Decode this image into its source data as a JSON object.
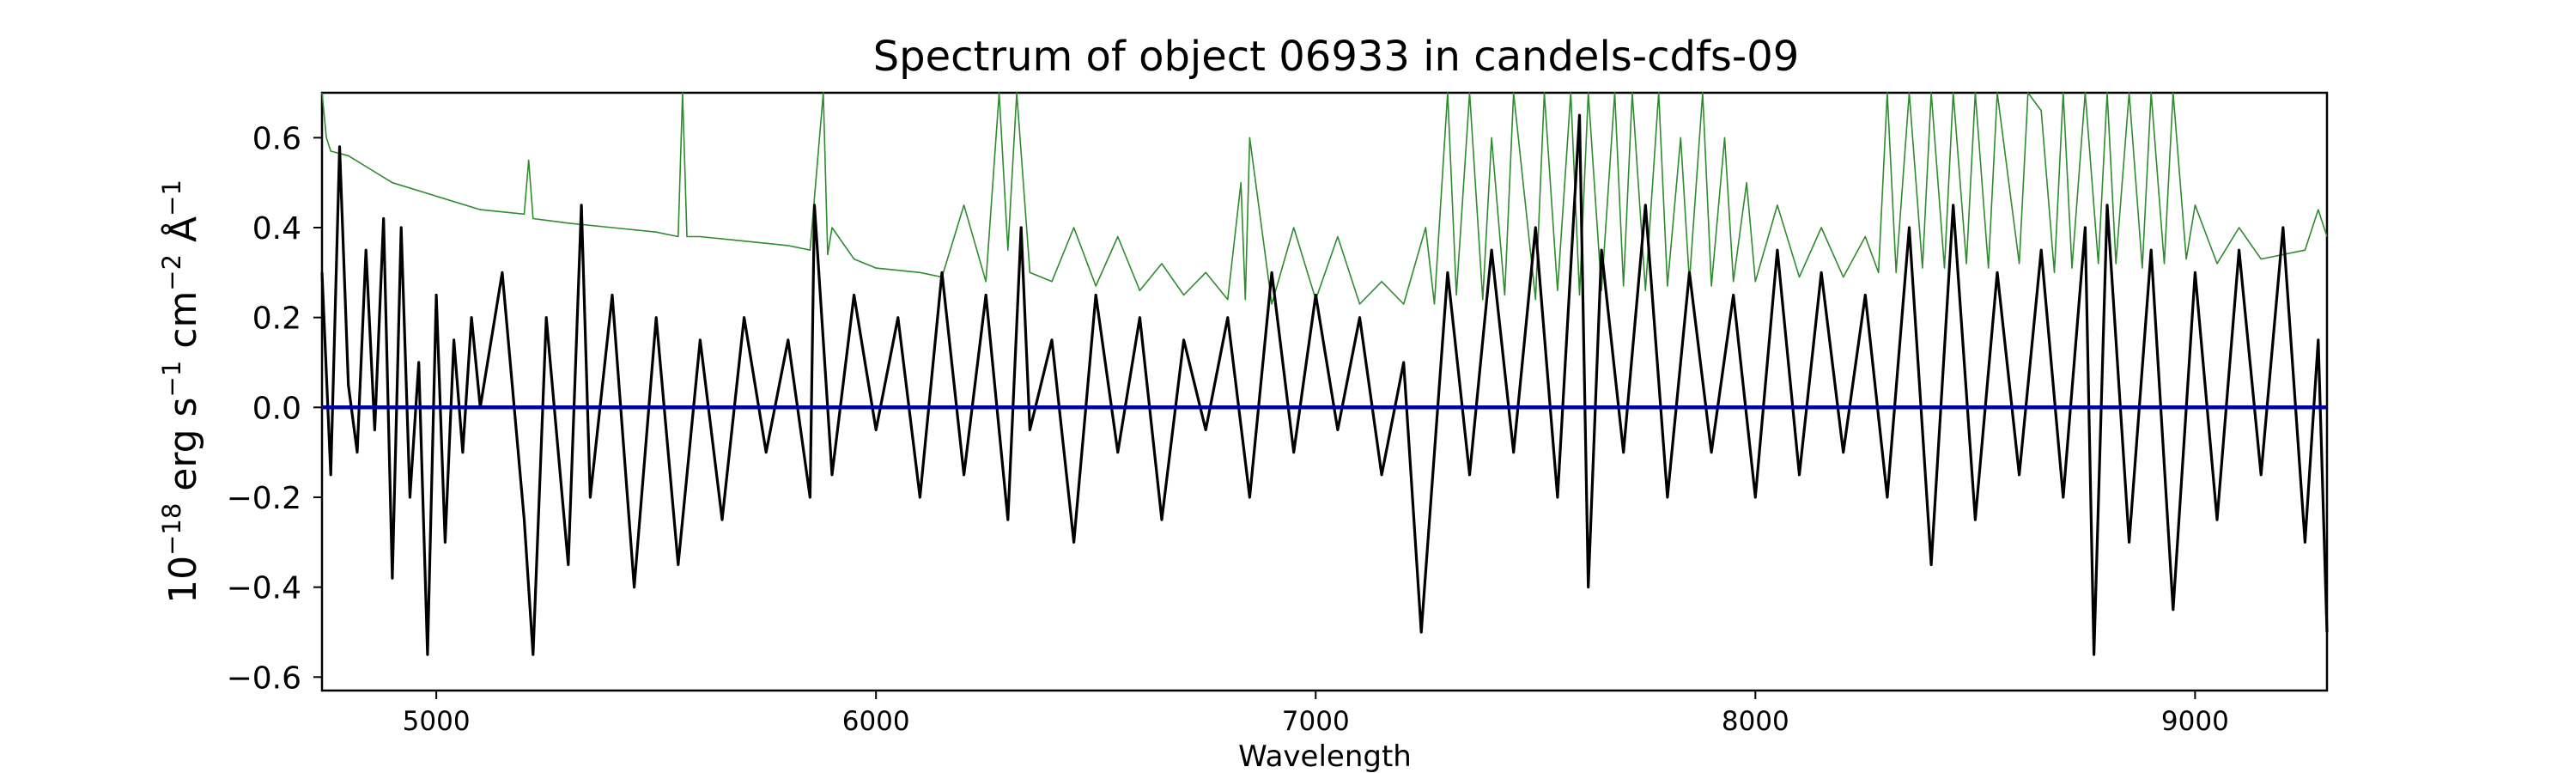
{
  "chart_data": {
    "type": "line",
    "title": "Spectrum of object 06933 in candels-cdfs-09",
    "xlabel": "Wavelength",
    "ylabel": {
      "base": "10",
      "exp_base": "−18",
      "erg": " erg s",
      "exp_s": "−1",
      "cm": " cm",
      "exp_cm": "−2",
      "ang": " Å",
      "exp_ang": "−1"
    },
    "xlim": [
      4740,
      9300
    ],
    "ylim": [
      -0.63,
      0.7
    ],
    "xticks": [
      5000,
      6000,
      7000,
      8000,
      9000
    ],
    "xtick_labels": [
      "5000",
      "6000",
      "7000",
      "8000",
      "9000"
    ],
    "yticks": [
      -0.6,
      -0.4,
      -0.2,
      0.0,
      0.2,
      0.4,
      0.6
    ],
    "ytick_labels": [
      "−0.6",
      "−0.4",
      "−0.2",
      "0.0",
      "0.2",
      "0.4",
      "0.6"
    ],
    "grid": false,
    "colors": {
      "flux": "#000000",
      "uncertainty": "#2e8b2e",
      "zero_line": "#0000aa"
    },
    "series": [
      {
        "role": "flux",
        "x": [
          4740,
          4760,
          4780,
          4800,
          4820,
          4840,
          4860,
          4880,
          4900,
          4920,
          4940,
          4960,
          4980,
          5000,
          5020,
          5040,
          5060,
          5080,
          5100,
          5150,
          5200,
          5220,
          5250,
          5300,
          5330,
          5350,
          5400,
          5450,
          5500,
          5550,
          5600,
          5650,
          5700,
          5750,
          5800,
          5850,
          5860,
          5900,
          5950,
          6000,
          6050,
          6100,
          6150,
          6200,
          6250,
          6300,
          6330,
          6350,
          6400,
          6450,
          6500,
          6550,
          6600,
          6650,
          6700,
          6750,
          6800,
          6850,
          6900,
          6950,
          7000,
          7050,
          7100,
          7150,
          7200,
          7240,
          7300,
          7350,
          7400,
          7450,
          7500,
          7550,
          7600,
          7620,
          7650,
          7700,
          7750,
          7800,
          7850,
          7900,
          7950,
          8000,
          8050,
          8100,
          8150,
          8200,
          8250,
          8300,
          8350,
          8400,
          8450,
          8500,
          8550,
          8600,
          8650,
          8700,
          8750,
          8770,
          8800,
          8850,
          8900,
          8950,
          9000,
          9050,
          9100,
          9150,
          9200,
          9250,
          9280,
          9300
        ],
        "y": [
          0.3,
          -0.15,
          0.58,
          0.05,
          -0.1,
          0.35,
          -0.05,
          0.42,
          -0.38,
          0.4,
          -0.2,
          0.1,
          -0.55,
          0.25,
          -0.3,
          0.15,
          -0.1,
          0.2,
          0.0,
          0.3,
          -0.25,
          -0.55,
          0.2,
          -0.35,
          0.45,
          -0.2,
          0.25,
          -0.4,
          0.2,
          -0.35,
          0.15,
          -0.25,
          0.2,
          -0.1,
          0.15,
          -0.2,
          0.45,
          -0.15,
          0.25,
          -0.05,
          0.2,
          -0.2,
          0.3,
          -0.15,
          0.25,
          -0.25,
          0.4,
          -0.05,
          0.15,
          -0.3,
          0.25,
          -0.1,
          0.2,
          -0.25,
          0.15,
          -0.05,
          0.2,
          -0.2,
          0.3,
          -0.1,
          0.25,
          -0.05,
          0.2,
          -0.15,
          0.1,
          -0.5,
          0.3,
          -0.15,
          0.35,
          -0.1,
          0.4,
          -0.2,
          0.65,
          -0.4,
          0.35,
          -0.1,
          0.45,
          -0.2,
          0.3,
          -0.1,
          0.25,
          -0.2,
          0.35,
          -0.15,
          0.3,
          -0.1,
          0.25,
          -0.2,
          0.4,
          -0.35,
          0.45,
          -0.25,
          0.3,
          -0.15,
          0.35,
          -0.2,
          0.4,
          -0.55,
          0.45,
          -0.3,
          0.35,
          -0.45,
          0.3,
          -0.25,
          0.35,
          -0.15,
          0.4,
          -0.3,
          0.15,
          -0.5
        ]
      },
      {
        "role": "uncertainty",
        "x": [
          4740,
          4750,
          4760,
          4800,
          4850,
          4900,
          5000,
          5100,
          5200,
          5210,
          5220,
          5300,
          5400,
          5500,
          5550,
          5560,
          5570,
          5600,
          5700,
          5800,
          5850,
          5880,
          5890,
          5900,
          5950,
          6000,
          6100,
          6150,
          6200,
          6250,
          6280,
          6300,
          6320,
          6350,
          6400,
          6450,
          6500,
          6550,
          6600,
          6650,
          6700,
          6750,
          6800,
          6830,
          6840,
          6850,
          6900,
          6950,
          7000,
          7050,
          7100,
          7150,
          7200,
          7250,
          7270,
          7300,
          7320,
          7350,
          7380,
          7400,
          7430,
          7450,
          7500,
          7520,
          7550,
          7580,
          7600,
          7620,
          7650,
          7680,
          7700,
          7720,
          7750,
          7780,
          7800,
          7830,
          7850,
          7880,
          7900,
          7930,
          7950,
          7980,
          8000,
          8050,
          8100,
          8150,
          8200,
          8250,
          8280,
          8300,
          8320,
          8350,
          8380,
          8400,
          8430,
          8450,
          8480,
          8500,
          8530,
          8550,
          8600,
          8620,
          8650,
          8680,
          8700,
          8720,
          8750,
          8780,
          8800,
          8820,
          8850,
          8880,
          8900,
          8930,
          8950,
          8980,
          9000,
          9050,
          9100,
          9150,
          9200,
          9250,
          9280,
          9300
        ],
        "y": [
          0.7,
          0.6,
          0.57,
          0.56,
          0.53,
          0.5,
          0.47,
          0.44,
          0.43,
          0.55,
          0.42,
          0.41,
          0.4,
          0.39,
          0.38,
          0.7,
          0.38,
          0.38,
          0.37,
          0.36,
          0.35,
          0.7,
          0.34,
          0.4,
          0.33,
          0.31,
          0.3,
          0.29,
          0.45,
          0.28,
          0.7,
          0.35,
          0.7,
          0.3,
          0.28,
          0.4,
          0.27,
          0.38,
          0.26,
          0.32,
          0.25,
          0.3,
          0.24,
          0.5,
          0.24,
          0.6,
          0.23,
          0.4,
          0.24,
          0.38,
          0.23,
          0.28,
          0.23,
          0.4,
          0.23,
          0.7,
          0.25,
          0.7,
          0.24,
          0.6,
          0.25,
          0.7,
          0.24,
          0.7,
          0.26,
          0.7,
          0.25,
          0.7,
          0.26,
          0.7,
          0.27,
          0.7,
          0.26,
          0.7,
          0.27,
          0.6,
          0.28,
          0.7,
          0.27,
          0.6,
          0.28,
          0.5,
          0.28,
          0.45,
          0.29,
          0.4,
          0.29,
          0.38,
          0.3,
          0.7,
          0.3,
          0.7,
          0.31,
          0.7,
          0.31,
          0.7,
          0.32,
          0.7,
          0.31,
          0.7,
          0.32,
          0.7,
          0.66,
          0.3,
          0.7,
          0.31,
          0.7,
          0.32,
          0.7,
          0.32,
          0.7,
          0.31,
          0.7,
          0.32,
          0.7,
          0.33,
          0.45,
          0.32,
          0.4,
          0.33,
          0.34,
          0.35,
          0.44,
          0.38
        ]
      },
      {
        "role": "zero_line",
        "x": [
          4740,
          9300
        ],
        "y": [
          0.0,
          0.0
        ]
      }
    ]
  }
}
